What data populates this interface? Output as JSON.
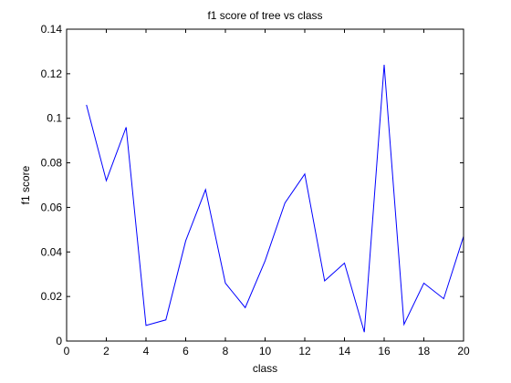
{
  "chart_data": {
    "type": "line",
    "title": "f1 score of tree vs class",
    "xlabel": "class",
    "ylabel": "f1 score",
    "xlim": [
      0,
      20
    ],
    "ylim": [
      0,
      0.14
    ],
    "xticks": [
      "0",
      "2",
      "4",
      "6",
      "8",
      "10",
      "12",
      "14",
      "16",
      "18",
      "20"
    ],
    "yticks": [
      "0",
      "0.02",
      "0.04",
      "0.06",
      "0.08",
      "0.1",
      "0.12",
      "0.14"
    ],
    "grid": false,
    "legend": "none",
    "line_color": "#0000ff",
    "series": [
      {
        "x": [
          1,
          2,
          3,
          4,
          5,
          6,
          7,
          8,
          9,
          10,
          11,
          12,
          13,
          14,
          15,
          16,
          17,
          18,
          19,
          20
        ],
        "values": [
          0.106,
          0.072,
          0.096,
          0.007,
          0.0095,
          0.045,
          0.068,
          0.026,
          0.015,
          0.036,
          0.062,
          0.075,
          0.027,
          0.035,
          0.004,
          0.124,
          0.0075,
          0.026,
          0.019,
          0.047
        ]
      }
    ]
  }
}
